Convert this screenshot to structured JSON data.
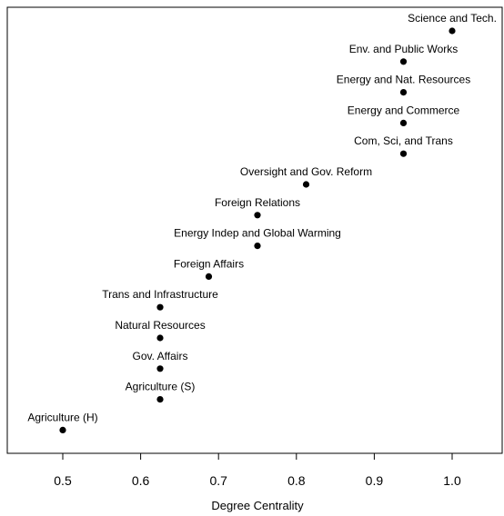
{
  "chart_data": {
    "type": "scatter",
    "title": "",
    "xlabel": "Degree Centrality",
    "ylabel": "",
    "xlim": [
      0.45,
      1.065
    ],
    "grid": false,
    "x_ticks": [
      {
        "value": 0.5,
        "label": "0.5"
      },
      {
        "value": 0.6,
        "label": "0.6"
      },
      {
        "value": 0.7,
        "label": "0.7"
      },
      {
        "value": 0.8,
        "label": "0.8"
      },
      {
        "value": 0.9,
        "label": "0.9"
      },
      {
        "value": 1.0,
        "label": "1.0"
      }
    ],
    "points": [
      {
        "label": "Science and Tech.",
        "x": 1.0
      },
      {
        "label": "Env. and Public Works",
        "x": 0.9375
      },
      {
        "label": "Energy and Nat. Resources",
        "x": 0.9375
      },
      {
        "label": "Energy and Commerce",
        "x": 0.9375
      },
      {
        "label": "Com, Sci, and Trans",
        "x": 0.9375
      },
      {
        "label": "Oversight and Gov. Reform",
        "x": 0.8125
      },
      {
        "label": "Foreign Relations",
        "x": 0.75
      },
      {
        "label": "Energy Indep and Global Warming",
        "x": 0.75
      },
      {
        "label": "Foreign Affairs",
        "x": 0.6875
      },
      {
        "label": "Trans and Infrastructure",
        "x": 0.625
      },
      {
        "label": "Natural Resources",
        "x": 0.625
      },
      {
        "label": "Gov. Affairs",
        "x": 0.625
      },
      {
        "label": "Agriculture (S)",
        "x": 0.625
      },
      {
        "label": "Agriculture (H)",
        "x": 0.5
      }
    ]
  }
}
